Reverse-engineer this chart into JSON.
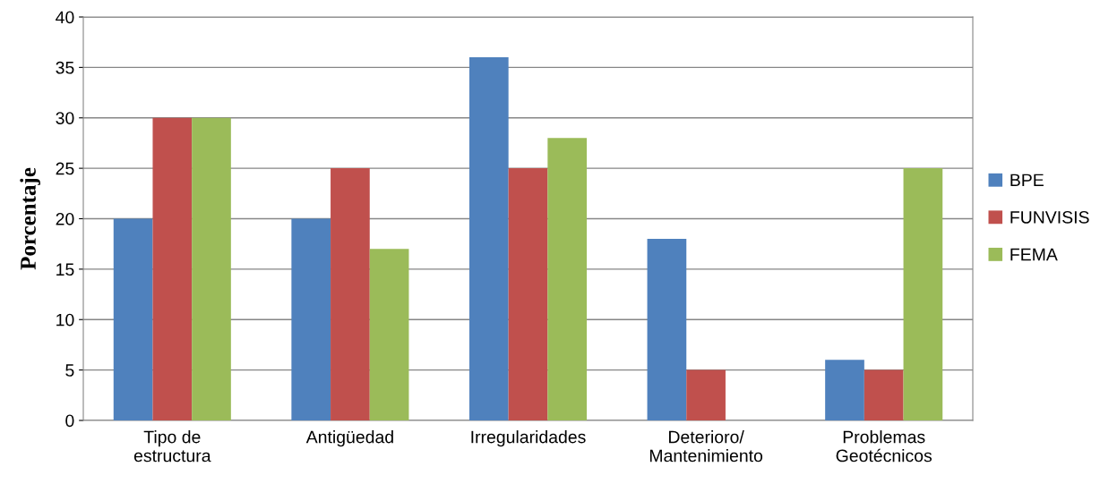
{
  "chart_data": {
    "type": "bar",
    "ylabel": "Porcentaje",
    "categories": [
      "Tipo de\nestructura",
      "Antigüedad",
      "Irregularidades",
      "Deterioro/\nMantenimiento",
      "Problemas\nGeotécnicos"
    ],
    "series": [
      {
        "name": "BPE",
        "color": "#4f81bd",
        "values": [
          20,
          20,
          36,
          18,
          6
        ]
      },
      {
        "name": "FUNVISIS",
        "color": "#c0504d",
        "values": [
          30,
          25,
          25,
          5,
          5
        ]
      },
      {
        "name": "FEMA",
        "color": "#9bbb59",
        "values": [
          30,
          17,
          28,
          null,
          25
        ]
      }
    ],
    "ylim": [
      0,
      40
    ],
    "yticks": [
      0,
      5,
      10,
      15,
      20,
      25,
      30,
      35,
      40
    ],
    "grid": "y",
    "legend": "right"
  }
}
